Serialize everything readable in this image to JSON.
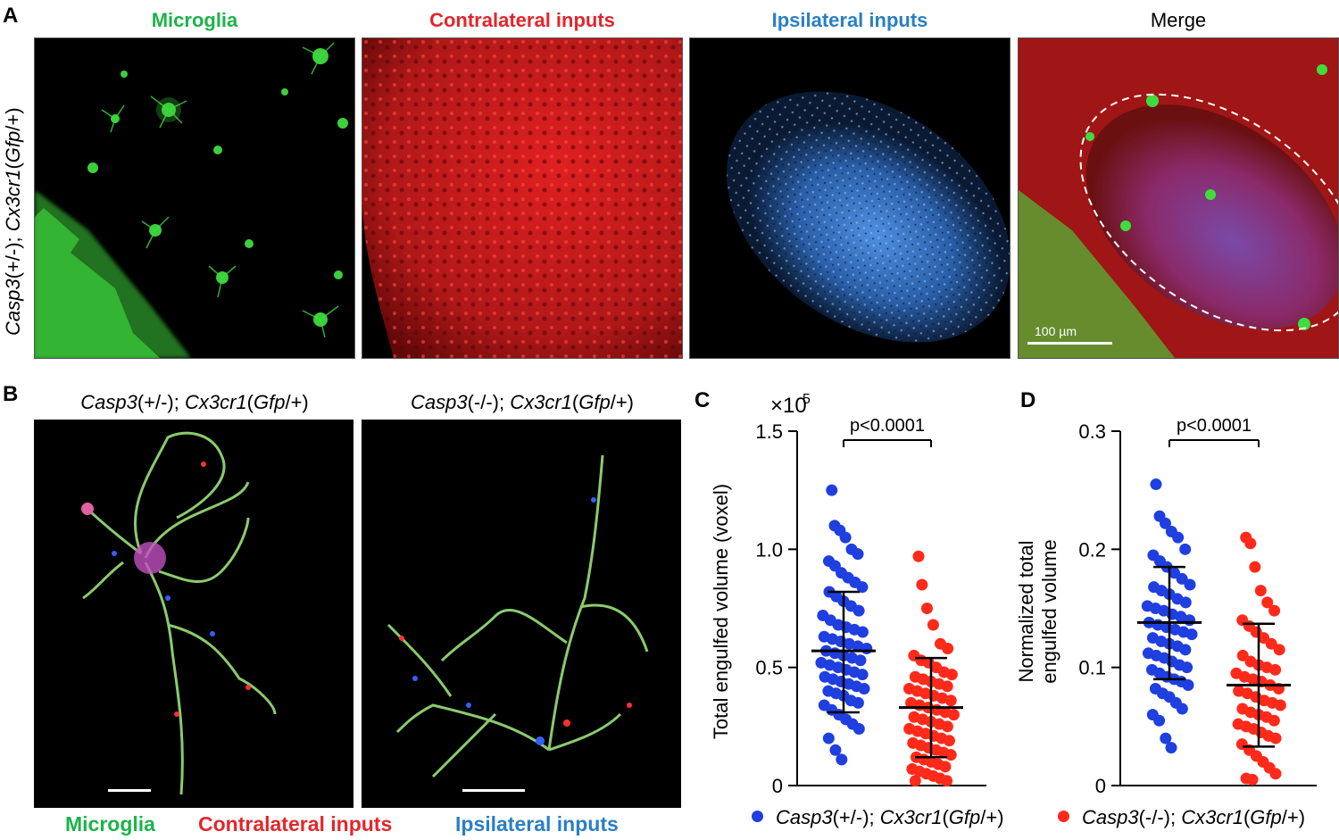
{
  "panel_letters": {
    "a": "A",
    "b": "B",
    "c": "C",
    "d": "D"
  },
  "panelA": {
    "row_label_parts": [
      "Casp3",
      "(+/-); ",
      "Cx3cr1",
      "(",
      "Gfp",
      "/+)"
    ],
    "titles": [
      {
        "text": "Microglia",
        "color": "#1db34a"
      },
      {
        "text": "Contralateral inputs",
        "color": "#e3262b"
      },
      {
        "text": "Ipsilateral inputs",
        "color": "#2a7fc4"
      },
      {
        "text": "Merge",
        "color": "#000000"
      }
    ],
    "scale_label": "100 µm"
  },
  "panelB": {
    "left_label_parts": [
      "Casp3",
      "(+/-); ",
      "Cx3cr1",
      "(",
      "Gfp",
      "/+)"
    ],
    "right_label_parts": [
      "Casp3",
      "(-/-); ",
      "Cx3cr1",
      "(",
      "Gfp",
      "/+)"
    ],
    "legend": [
      {
        "text": "Microglia",
        "color": "#1db34a"
      },
      {
        "text": "Contralateral inputs",
        "color": "#e3262b"
      },
      {
        "text": "Ipsilateral inputs",
        "color": "#2a7fc4"
      }
    ]
  },
  "legend_bottom": {
    "items": [
      {
        "color": "#1f3fe0",
        "parts": [
          "Casp3",
          "(+/-); ",
          "Cx3cr1",
          "(",
          "Gfp",
          "/+)"
        ]
      },
      {
        "color": "#ff2a1a",
        "parts": [
          "Casp3",
          "(-/-); ",
          "Cx3cr1",
          "(",
          "Gfp",
          "/+)"
        ]
      }
    ]
  },
  "chart_data": [
    {
      "type": "scatter",
      "panel": "C",
      "ylabel": "Total engulfed volume (voxel)",
      "multiplier": "×10",
      "multiplier_exp": "5",
      "ylim": [
        0,
        1.5
      ],
      "yticks": [
        0,
        0.5,
        1.0,
        1.5
      ],
      "ytick_labels": [
        "0",
        "0.5",
        "1.0",
        "1.5"
      ],
      "annotation": "p<0.0001",
      "series": [
        {
          "name": "Casp3(+/-); Cx3cr1(Gfp/+)",
          "color": "#1f3fe0",
          "mean": 0.57,
          "sd_low": 0.31,
          "sd_high": 0.82,
          "values": [
            1.25,
            1.1,
            1.08,
            1.05,
            1.0,
            0.98,
            0.95,
            0.93,
            0.9,
            0.88,
            0.86,
            0.84,
            0.82,
            0.8,
            0.78,
            0.76,
            0.74,
            0.72,
            0.7,
            0.68,
            0.67,
            0.66,
            0.65,
            0.63,
            0.62,
            0.61,
            0.6,
            0.59,
            0.58,
            0.57,
            0.56,
            0.55,
            0.54,
            0.53,
            0.52,
            0.51,
            0.5,
            0.49,
            0.48,
            0.47,
            0.46,
            0.45,
            0.44,
            0.43,
            0.42,
            0.41,
            0.4,
            0.39,
            0.38,
            0.36,
            0.35,
            0.34,
            0.32,
            0.3,
            0.28,
            0.26,
            0.24,
            0.2,
            0.15,
            0.11
          ]
        },
        {
          "name": "Casp3(-/-); Cx3cr1(Gfp/+)",
          "color": "#ff2a1a",
          "mean": 0.33,
          "sd_low": 0.12,
          "sd_high": 0.54,
          "values": [
            0.97,
            0.85,
            0.75,
            0.68,
            0.6,
            0.58,
            0.55,
            0.53,
            0.52,
            0.5,
            0.48,
            0.47,
            0.46,
            0.45,
            0.44,
            0.43,
            0.42,
            0.41,
            0.4,
            0.39,
            0.38,
            0.37,
            0.36,
            0.35,
            0.34,
            0.33,
            0.32,
            0.31,
            0.3,
            0.29,
            0.28,
            0.27,
            0.26,
            0.25,
            0.24,
            0.23,
            0.22,
            0.21,
            0.2,
            0.19,
            0.18,
            0.17,
            0.16,
            0.15,
            0.14,
            0.13,
            0.12,
            0.11,
            0.1,
            0.09,
            0.08,
            0.07,
            0.06,
            0.05,
            0.04,
            0.03,
            0.02,
            0.02
          ]
        }
      ]
    },
    {
      "type": "scatter",
      "panel": "D",
      "ylabel_lines": [
        "Normalized total",
        "engulfed volume"
      ],
      "ylim": [
        0,
        0.3
      ],
      "yticks": [
        0,
        0.1,
        0.2,
        0.3
      ],
      "ytick_labels": [
        "0",
        "0.1",
        "0.2",
        "0.3"
      ],
      "annotation": "p<0.0001",
      "series": [
        {
          "name": "Casp3(+/-); Cx3cr1(Gfp/+)",
          "color": "#1f3fe0",
          "mean": 0.138,
          "sd_low": 0.09,
          "sd_high": 0.185,
          "values": [
            0.255,
            0.228,
            0.222,
            0.215,
            0.21,
            0.2,
            0.195,
            0.19,
            0.185,
            0.18,
            0.175,
            0.17,
            0.168,
            0.165,
            0.162,
            0.158,
            0.155,
            0.152,
            0.15,
            0.148,
            0.145,
            0.143,
            0.14,
            0.138,
            0.136,
            0.134,
            0.132,
            0.13,
            0.128,
            0.125,
            0.122,
            0.12,
            0.118,
            0.115,
            0.112,
            0.11,
            0.108,
            0.105,
            0.102,
            0.1,
            0.098,
            0.095,
            0.092,
            0.09,
            0.088,
            0.085,
            0.082,
            0.078,
            0.075,
            0.07,
            0.065,
            0.06,
            0.055,
            0.04,
            0.032
          ]
        },
        {
          "name": "Casp3(-/-); Cx3cr1(Gfp/+)",
          "color": "#ff2a1a",
          "mean": 0.085,
          "sd_low": 0.033,
          "sd_high": 0.137,
          "values": [
            0.21,
            0.205,
            0.185,
            0.165,
            0.155,
            0.148,
            0.14,
            0.135,
            0.13,
            0.125,
            0.12,
            0.115,
            0.11,
            0.105,
            0.102,
            0.1,
            0.098,
            0.095,
            0.092,
            0.09,
            0.088,
            0.085,
            0.082,
            0.08,
            0.078,
            0.075,
            0.072,
            0.07,
            0.068,
            0.065,
            0.062,
            0.06,
            0.058,
            0.055,
            0.052,
            0.05,
            0.048,
            0.045,
            0.042,
            0.04,
            0.035,
            0.03,
            0.025,
            0.02,
            0.015,
            0.01,
            0.006,
            0.005
          ]
        }
      ]
    }
  ]
}
